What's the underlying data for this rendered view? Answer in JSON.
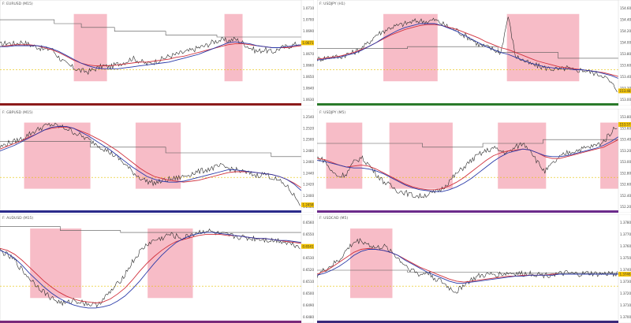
{
  "charts": [
    {
      "id": "eurusd-m15",
      "title": "F: EURUSD (M15)",
      "price_axis": [
        "1.0710",
        "1.0700",
        "1.0690",
        "1.0680",
        "1.0670",
        "1.0660",
        "1.0650",
        "1.0640",
        "1.0630"
      ],
      "last_price_label": "1.0671",
      "highlight_zones": [
        {
          "start": 0.245,
          "end": 0.355
        },
        {
          "start": 0.745,
          "end": 0.805
        }
      ],
      "close": [
        0.6,
        0.62,
        0.61,
        0.63,
        0.6,
        0.58,
        0.55,
        0.56,
        0.47,
        0.4,
        0.36,
        0.33,
        0.32,
        0.35,
        0.38,
        0.37,
        0.4,
        0.42,
        0.46,
        0.43,
        0.4,
        0.42,
        0.45,
        0.48,
        0.5,
        0.52,
        0.54,
        0.57,
        0.59,
        0.63,
        0.65,
        0.64,
        0.66,
        0.62,
        0.57,
        0.53,
        0.55,
        0.52,
        0.56,
        0.58,
        0.6,
        0.62
      ],
      "ma_red": [
        0.58,
        0.59,
        0.6,
        0.6,
        0.6,
        0.59,
        0.57,
        0.55,
        0.52,
        0.48,
        0.44,
        0.41,
        0.39,
        0.38,
        0.38,
        0.38,
        0.39,
        0.4,
        0.41,
        0.42,
        0.42,
        0.43,
        0.44,
        0.45,
        0.47,
        0.48,
        0.5,
        0.52,
        0.54,
        0.56,
        0.58,
        0.6,
        0.61,
        0.61,
        0.6,
        0.59,
        0.58,
        0.57,
        0.57,
        0.57,
        0.58,
        0.59
      ],
      "ma_blue": [
        0.58,
        0.58,
        0.59,
        0.59,
        0.59,
        0.59,
        0.58,
        0.56,
        0.53,
        0.49,
        0.45,
        0.41,
        0.38,
        0.36,
        0.35,
        0.35,
        0.35,
        0.36,
        0.37,
        0.38,
        0.39,
        0.4,
        0.41,
        0.42,
        0.44,
        0.46,
        0.48,
        0.5,
        0.53,
        0.56,
        0.59,
        0.62,
        0.63,
        0.62,
        0.61,
        0.59,
        0.58,
        0.57,
        0.57,
        0.58,
        0.59,
        0.6
      ],
      "step": [
        [
          0.0,
          0.86
        ],
        [
          0.18,
          0.86
        ],
        [
          0.18,
          0.82
        ],
        [
          0.27,
          0.82
        ],
        [
          0.27,
          0.78
        ],
        [
          0.38,
          0.78
        ],
        [
          0.38,
          0.74
        ],
        [
          0.55,
          0.74
        ],
        [
          0.55,
          0.7
        ],
        [
          0.72,
          0.7
        ],
        [
          0.72,
          0.68
        ],
        [
          1.0,
          0.68
        ]
      ],
      "bottom_bar": "#8b1a1a"
    },
    {
      "id": "usdjpy-m15",
      "title": "F: USDJPY (H1)",
      "price_axis": [
        "154.60",
        "154.40",
        "154.20",
        "154.00",
        "153.80",
        "153.60",
        "153.40",
        "153.20",
        "153.00"
      ],
      "last_price_label": "153.48",
      "highlight_zones": [
        {
          "start": 0.22,
          "end": 0.4
        },
        {
          "start": 0.63,
          "end": 0.87
        }
      ],
      "close": [
        0.45,
        0.46,
        0.48,
        0.47,
        0.5,
        0.52,
        0.56,
        0.62,
        0.7,
        0.74,
        0.78,
        0.8,
        0.82,
        0.84,
        0.85,
        0.84,
        0.86,
        0.82,
        0.78,
        0.75,
        0.7,
        0.66,
        0.6,
        0.58,
        0.55,
        0.52,
        0.9,
        0.48,
        0.44,
        0.4,
        0.38,
        0.36,
        0.35,
        0.34,
        0.36,
        0.33,
        0.34,
        0.32,
        0.3,
        0.28,
        0.2,
        0.12
      ],
      "ma_red": [
        0.45,
        0.46,
        0.47,
        0.48,
        0.5,
        0.52,
        0.55,
        0.58,
        0.62,
        0.66,
        0.7,
        0.73,
        0.76,
        0.78,
        0.8,
        0.81,
        0.81,
        0.8,
        0.78,
        0.76,
        0.73,
        0.7,
        0.67,
        0.63,
        0.6,
        0.57,
        0.55,
        0.52,
        0.49,
        0.46,
        0.43,
        0.41,
        0.39,
        0.37,
        0.36,
        0.35,
        0.34,
        0.33,
        0.32,
        0.31,
        0.29,
        0.27
      ],
      "ma_blue": [
        0.44,
        0.45,
        0.46,
        0.47,
        0.49,
        0.51,
        0.54,
        0.58,
        0.62,
        0.67,
        0.71,
        0.75,
        0.78,
        0.8,
        0.82,
        0.82,
        0.82,
        0.8,
        0.77,
        0.74,
        0.7,
        0.66,
        0.62,
        0.58,
        0.55,
        0.52,
        0.5,
        0.47,
        0.44,
        0.41,
        0.39,
        0.37,
        0.36,
        0.35,
        0.35,
        0.34,
        0.34,
        0.33,
        0.32,
        0.3,
        0.28,
        0.25
      ],
      "step": [
        [
          0.0,
          0.56
        ],
        [
          0.3,
          0.56
        ],
        [
          0.3,
          0.58
        ],
        [
          0.6,
          0.58
        ],
        [
          0.6,
          0.52
        ],
        [
          0.8,
          0.52
        ],
        [
          0.8,
          0.46
        ],
        [
          1.0,
          0.46
        ]
      ],
      "bottom_bar": "#2a7a2a"
    },
    {
      "id": "gbpusd-m15",
      "title": "F: GBPUSD (M15)",
      "price_axis": [
        "1.2540",
        "1.2520",
        "1.2500",
        "1.2480",
        "1.2460",
        "1.2440",
        "1.2420",
        "1.2400",
        "1.2380"
      ],
      "last_price_label": "1.2458",
      "highlight_zones": [
        {
          "start": 0.08,
          "end": 0.3
        },
        {
          "start": 0.45,
          "end": 0.6
        }
      ],
      "close": [
        0.66,
        0.7,
        0.72,
        0.75,
        0.8,
        0.84,
        0.88,
        0.9,
        0.88,
        0.86,
        0.82,
        0.78,
        0.74,
        0.7,
        0.65,
        0.6,
        0.55,
        0.48,
        0.4,
        0.34,
        0.3,
        0.28,
        0.3,
        0.32,
        0.33,
        0.35,
        0.38,
        0.4,
        0.42,
        0.44,
        0.46,
        0.44,
        0.42,
        0.4,
        0.38,
        0.36,
        0.38,
        0.34,
        0.3,
        0.25,
        0.15,
        0.05
      ],
      "ma_red": [
        0.64,
        0.67,
        0.7,
        0.73,
        0.77,
        0.8,
        0.84,
        0.86,
        0.87,
        0.87,
        0.86,
        0.83,
        0.8,
        0.76,
        0.72,
        0.67,
        0.62,
        0.56,
        0.5,
        0.44,
        0.39,
        0.35,
        0.33,
        0.31,
        0.3,
        0.29,
        0.3,
        0.31,
        0.33,
        0.35,
        0.37,
        0.39,
        0.4,
        0.4,
        0.4,
        0.39,
        0.38,
        0.37,
        0.35,
        0.32,
        0.28,
        0.23
      ],
      "ma_blue": [
        0.62,
        0.65,
        0.68,
        0.72,
        0.76,
        0.8,
        0.84,
        0.87,
        0.88,
        0.88,
        0.86,
        0.82,
        0.78,
        0.73,
        0.68,
        0.63,
        0.57,
        0.51,
        0.45,
        0.4,
        0.35,
        0.32,
        0.3,
        0.29,
        0.29,
        0.3,
        0.32,
        0.34,
        0.36,
        0.38,
        0.4,
        0.42,
        0.42,
        0.41,
        0.4,
        0.39,
        0.38,
        0.37,
        0.35,
        0.32,
        0.27,
        0.2
      ],
      "step": [
        [
          0.0,
          0.72
        ],
        [
          0.3,
          0.72
        ],
        [
          0.3,
          0.66
        ],
        [
          0.55,
          0.66
        ],
        [
          0.55,
          0.6
        ],
        [
          0.9,
          0.6
        ],
        [
          0.9,
          0.56
        ],
        [
          1.0,
          0.56
        ]
      ],
      "bottom_bar": "#2a2a8b"
    },
    {
      "id": "usdjpy-h4",
      "title": "F: USDJPY (M5)",
      "price_axis": [
        "153.80",
        "153.60",
        "153.40",
        "153.20",
        "153.00",
        "152.80",
        "152.60",
        "152.40",
        "152.20"
      ],
      "last_price_label": "153.57",
      "highlight_zones": [
        {
          "start": 0.03,
          "end": 0.15
        },
        {
          "start": 0.24,
          "end": 0.45
        },
        {
          "start": 0.6,
          "end": 0.76
        },
        {
          "start": 0.94,
          "end": 1.0
        }
      ],
      "close": [
        0.55,
        0.52,
        0.4,
        0.35,
        0.38,
        0.5,
        0.55,
        0.48,
        0.38,
        0.3,
        0.25,
        0.2,
        0.18,
        0.15,
        0.14,
        0.16,
        0.18,
        0.22,
        0.3,
        0.38,
        0.45,
        0.52,
        0.58,
        0.62,
        0.65,
        0.62,
        0.6,
        0.66,
        0.7,
        0.64,
        0.5,
        0.4,
        0.48,
        0.55,
        0.6,
        0.62,
        0.64,
        0.66,
        0.68,
        0.72,
        0.82,
        0.9
      ],
      "ma_red": [
        0.54,
        0.53,
        0.5,
        0.47,
        0.45,
        0.46,
        0.47,
        0.46,
        0.43,
        0.39,
        0.35,
        0.31,
        0.27,
        0.24,
        0.22,
        0.21,
        0.21,
        0.22,
        0.25,
        0.29,
        0.34,
        0.4,
        0.46,
        0.52,
        0.57,
        0.6,
        0.62,
        0.63,
        0.64,
        0.63,
        0.6,
        0.56,
        0.54,
        0.54,
        0.56,
        0.58,
        0.6,
        0.62,
        0.64,
        0.66,
        0.7,
        0.74
      ],
      "ma_blue": [
        0.52,
        0.51,
        0.49,
        0.47,
        0.45,
        0.44,
        0.44,
        0.43,
        0.41,
        0.38,
        0.34,
        0.3,
        0.26,
        0.23,
        0.21,
        0.2,
        0.19,
        0.19,
        0.21,
        0.24,
        0.28,
        0.33,
        0.39,
        0.45,
        0.51,
        0.56,
        0.6,
        0.62,
        0.64,
        0.63,
        0.6,
        0.57,
        0.56,
        0.56,
        0.57,
        0.59,
        0.61,
        0.63,
        0.65,
        0.68,
        0.72,
        0.77
      ],
      "step": [
        [
          0.0,
          0.7
        ],
        [
          0.35,
          0.7
        ],
        [
          0.35,
          0.66
        ],
        [
          0.55,
          0.66
        ],
        [
          0.55,
          0.7
        ],
        [
          0.75,
          0.7
        ],
        [
          0.75,
          0.74
        ],
        [
          1.0,
          0.74
        ]
      ],
      "bottom_bar": "#6b2a8b"
    },
    {
      "id": "audusd-m15",
      "title": "F: AUDUSD (M15)",
      "price_axis": [
        "0.6560",
        "0.6550",
        "0.6540",
        "0.6530",
        "0.6520",
        "0.6510",
        "0.6500",
        "0.6490",
        "0.6480"
      ],
      "last_price_label": "0.6541",
      "highlight_zones": [
        {
          "start": 0.1,
          "end": 0.27
        },
        {
          "start": 0.49,
          "end": 0.64
        }
      ],
      "close": [
        0.7,
        0.65,
        0.6,
        0.5,
        0.42,
        0.35,
        0.28,
        0.22,
        0.18,
        0.16,
        0.2,
        0.18,
        0.16,
        0.15,
        0.2,
        0.28,
        0.36,
        0.46,
        0.58,
        0.68,
        0.76,
        0.8,
        0.82,
        0.86,
        0.84,
        0.82,
        0.86,
        0.88,
        0.9,
        0.88,
        0.86,
        0.85,
        0.84,
        0.83,
        0.82,
        0.82,
        0.81,
        0.8,
        0.8,
        0.78,
        0.76,
        0.74
      ],
      "ma_red": [
        0.72,
        0.7,
        0.66,
        0.6,
        0.53,
        0.46,
        0.39,
        0.33,
        0.28,
        0.24,
        0.21,
        0.19,
        0.18,
        0.17,
        0.18,
        0.21,
        0.26,
        0.32,
        0.4,
        0.49,
        0.57,
        0.64,
        0.7,
        0.75,
        0.79,
        0.81,
        0.83,
        0.85,
        0.86,
        0.86,
        0.86,
        0.85,
        0.85,
        0.84,
        0.83,
        0.82,
        0.82,
        0.81,
        0.8,
        0.79,
        0.78,
        0.77
      ],
      "ma_blue": [
        0.7,
        0.67,
        0.62,
        0.55,
        0.47,
        0.4,
        0.33,
        0.27,
        0.22,
        0.18,
        0.15,
        0.13,
        0.12,
        0.12,
        0.13,
        0.15,
        0.19,
        0.24,
        0.31,
        0.39,
        0.48,
        0.57,
        0.65,
        0.72,
        0.78,
        0.82,
        0.85,
        0.87,
        0.88,
        0.88,
        0.87,
        0.86,
        0.85,
        0.84,
        0.83,
        0.82,
        0.82,
        0.81,
        0.8,
        0.8,
        0.79,
        0.78
      ],
      "step": [
        [
          0.0,
          0.94
        ],
        [
          0.2,
          0.94
        ],
        [
          0.2,
          0.9
        ],
        [
          0.4,
          0.9
        ],
        [
          0.4,
          0.88
        ],
        [
          1.0,
          0.88
        ]
      ],
      "bottom_bar": "#7a2a7a"
    },
    {
      "id": "usdcad-m15",
      "title": "F: USDCAD (M5)",
      "price_axis": [
        "1.3780",
        "1.3770",
        "1.3760",
        "1.3750",
        "1.3740",
        "1.3730",
        "1.3720",
        "1.3710",
        "1.3700"
      ],
      "last_price_label": "1.3746",
      "highlight_zones": [
        {
          "start": 0.11,
          "end": 0.25
        }
      ],
      "close": [
        0.45,
        0.5,
        0.55,
        0.6,
        0.7,
        0.78,
        0.8,
        0.76,
        0.72,
        0.74,
        0.7,
        0.62,
        0.55,
        0.5,
        0.45,
        0.48,
        0.42,
        0.38,
        0.32,
        0.28,
        0.36,
        0.4,
        0.44,
        0.45,
        0.46,
        0.46,
        0.47,
        0.47,
        0.46,
        0.47,
        0.46,
        0.45,
        0.46,
        0.46,
        0.47,
        0.46,
        0.46,
        0.47,
        0.46,
        0.46,
        0.47,
        0.46
      ],
      "ma_red": [
        0.46,
        0.49,
        0.53,
        0.58,
        0.63,
        0.68,
        0.71,
        0.72,
        0.71,
        0.7,
        0.68,
        0.65,
        0.61,
        0.57,
        0.53,
        0.5,
        0.47,
        0.44,
        0.41,
        0.39,
        0.38,
        0.39,
        0.4,
        0.41,
        0.42,
        0.43,
        0.44,
        0.44,
        0.45,
        0.45,
        0.45,
        0.45,
        0.46,
        0.46,
        0.46,
        0.46,
        0.46,
        0.46,
        0.46,
        0.46,
        0.46,
        0.46
      ],
      "ma_blue": [
        0.45,
        0.47,
        0.5,
        0.54,
        0.59,
        0.65,
        0.69,
        0.71,
        0.71,
        0.7,
        0.68,
        0.65,
        0.6,
        0.56,
        0.52,
        0.48,
        0.45,
        0.42,
        0.39,
        0.37,
        0.37,
        0.38,
        0.39,
        0.4,
        0.41,
        0.42,
        0.43,
        0.44,
        0.44,
        0.45,
        0.45,
        0.45,
        0.45,
        0.46,
        0.46,
        0.46,
        0.46,
        0.46,
        0.46,
        0.46,
        0.46,
        0.46
      ],
      "step": [
        [
          0.0,
          0.5
        ],
        [
          0.3,
          0.5
        ],
        [
          0.3,
          0.48
        ],
        [
          0.6,
          0.48
        ],
        [
          0.6,
          0.47
        ],
        [
          1.0,
          0.47
        ]
      ],
      "bottom_bar": "#3a2a7a"
    }
  ]
}
